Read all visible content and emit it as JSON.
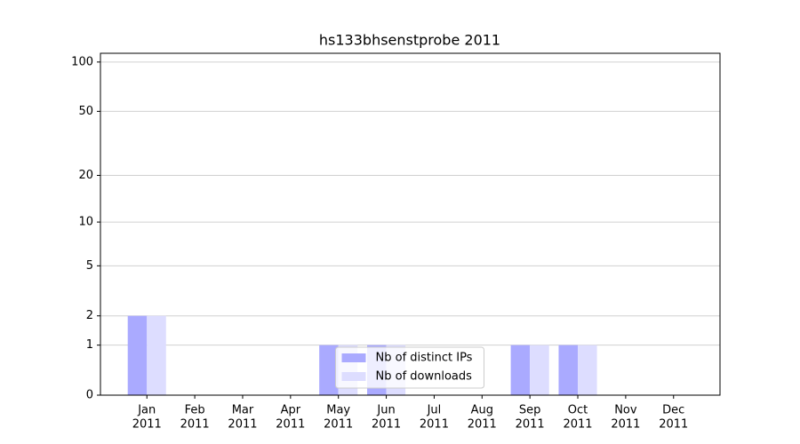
{
  "chart_data": {
    "type": "bar",
    "title": "hs133bhsenstprobe 2011",
    "categories": [
      [
        "Jan",
        "2011"
      ],
      [
        "Feb",
        "2011"
      ],
      [
        "Mar",
        "2011"
      ],
      [
        "Apr",
        "2011"
      ],
      [
        "May",
        "2011"
      ],
      [
        "Jun",
        "2011"
      ],
      [
        "Jul",
        "2011"
      ],
      [
        "Aug",
        "2011"
      ],
      [
        "Sep",
        "2011"
      ],
      [
        "Oct",
        "2011"
      ],
      [
        "Nov",
        "2011"
      ],
      [
        "Dec",
        "2011"
      ]
    ],
    "series": [
      {
        "name": "Nb of distinct IPs",
        "color": "#aaaaff",
        "values": [
          2,
          0,
          0,
          0,
          1,
          1,
          0,
          0,
          1,
          1,
          0,
          0
        ]
      },
      {
        "name": "Nb of downloads",
        "color": "#ddddff",
        "values": [
          2,
          0,
          0,
          0,
          1,
          1,
          0,
          0,
          1,
          1,
          0,
          0
        ]
      }
    ],
    "yscale": "symlog",
    "ylim": [
      0,
      113
    ],
    "yticks": [
      0,
      1,
      2,
      5,
      10,
      20,
      50,
      100
    ],
    "grid": true,
    "legend": "lower center"
  }
}
